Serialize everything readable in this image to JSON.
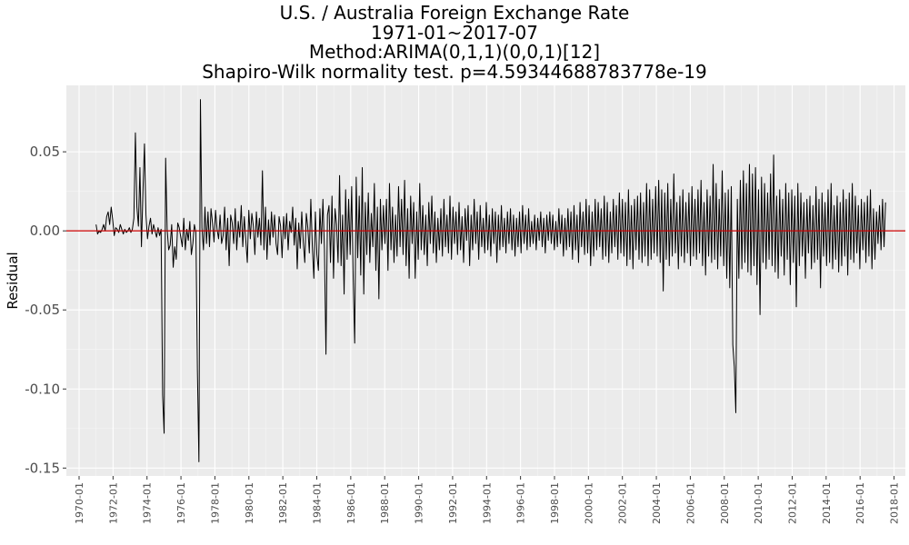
{
  "chart_data": {
    "type": "line",
    "title_lines": [
      "U.S. / Australia Foreign Exchange Rate",
      "1971-01~2017-07",
      "Method:ARIMA(0,1,1)(0,0,1)[12]",
      "Shapiro-Wilk normality test. p=4.59344688783778e-19"
    ],
    "xlabel": "",
    "ylabel": "Residual",
    "x_range": [
      "1971-01",
      "2017-07"
    ],
    "xlim": [
      "1969-04",
      "2018-09"
    ],
    "ylim": [
      -0.155,
      0.092
    ],
    "x_ticks": [
      "1970-01",
      "1972-01",
      "1974-01",
      "1976-01",
      "1978-01",
      "1980-01",
      "1982-01",
      "1984-01",
      "1986-01",
      "1988-01",
      "1990-01",
      "1992-01",
      "1994-01",
      "1996-01",
      "1998-01",
      "2000-01",
      "2002-01",
      "2004-01",
      "2006-01",
      "2008-01",
      "2010-01",
      "2012-01",
      "2014-01",
      "2016-01",
      "2018-01"
    ],
    "y_ticks": [
      {
        "value": 0.05,
        "label": "0.05"
      },
      {
        "value": 0.0,
        "label": "0.00"
      },
      {
        "value": -0.05,
        "label": "-0.05"
      },
      {
        "value": -0.1,
        "label": "-0.10"
      },
      {
        "value": -0.15,
        "label": "-0.15"
      }
    ],
    "reference_line": {
      "value": 0,
      "color": "#cc0000"
    },
    "series_color": "#000000",
    "panel_background": "#ebebeb",
    "grid": true,
    "series": [
      {
        "values": [
          0.004,
          -0.002,
          0.0,
          -0.001,
          0.001,
          0.004,
          0.0,
          0.009,
          0.012,
          0.004,
          0.015,
          0.007,
          -0.003,
          0.002,
          0.001,
          -0.001,
          0.004,
          0.001,
          -0.002,
          0.001,
          -0.001,
          0.0,
          0.002,
          -0.001,
          0.001,
          0.008,
          0.062,
          0.015,
          0.003,
          0.04,
          -0.01,
          0.025,
          0.055,
          0.01,
          -0.005,
          0.003,
          0.008,
          -0.002,
          0.004,
          0.0,
          -0.004,
          0.002,
          -0.003,
          0.001,
          -0.104,
          -0.128,
          0.046,
          0.001,
          -0.012,
          -0.009,
          0.004,
          -0.023,
          -0.01,
          -0.018,
          0.005,
          0.002,
          -0.004,
          -0.01,
          0.008,
          -0.012,
          0.001,
          -0.006,
          0.006,
          -0.015,
          -0.008,
          0.004,
          -0.001,
          -0.088,
          -0.146,
          0.083,
          0.002,
          -0.012,
          0.015,
          -0.008,
          0.012,
          -0.01,
          0.014,
          0.005,
          -0.007,
          0.013,
          0.001,
          -0.005,
          0.01,
          -0.008,
          -0.003,
          0.015,
          -0.012,
          0.008,
          -0.022,
          0.01,
          0.005,
          -0.008,
          0.014,
          -0.012,
          0.006,
          -0.004,
          0.016,
          -0.01,
          0.009,
          -0.006,
          -0.02,
          0.013,
          -0.005,
          0.011,
          0.003,
          -0.015,
          0.012,
          -0.004,
          0.008,
          -0.009,
          0.038,
          -0.012,
          0.015,
          -0.018,
          0.007,
          -0.009,
          0.012,
          -0.004,
          0.01,
          -0.008,
          -0.015,
          0.009,
          0.003,
          -0.017,
          0.009,
          -0.005,
          0.011,
          -0.012,
          0.006,
          -0.001,
          0.015,
          -0.009,
          0.008,
          -0.024,
          0.005,
          -0.011,
          0.012,
          -0.007,
          -0.02,
          0.011,
          0.002,
          -0.014,
          0.02,
          -0.01,
          -0.03,
          0.012,
          -0.015,
          -0.025,
          0.014,
          -0.008,
          0.02,
          -0.012,
          -0.078,
          0.01,
          0.016,
          -0.02,
          0.022,
          -0.03,
          0.014,
          0.004,
          -0.02,
          0.035,
          -0.022,
          0.01,
          -0.04,
          0.026,
          -0.018,
          0.02,
          -0.015,
          0.028,
          -0.03,
          -0.071,
          0.034,
          -0.017,
          0.022,
          -0.028,
          0.04,
          -0.04,
          0.018,
          -0.015,
          0.024,
          -0.02,
          0.011,
          -0.01,
          0.03,
          -0.025,
          0.015,
          -0.043,
          0.02,
          -0.012,
          0.016,
          -0.008,
          0.02,
          -0.025,
          0.03,
          -0.012,
          0.015,
          -0.02,
          0.01,
          -0.016,
          0.028,
          -0.01,
          0.02,
          -0.015,
          0.032,
          -0.022,
          0.014,
          -0.03,
          0.022,
          -0.008,
          0.018,
          -0.03,
          0.012,
          -0.018,
          0.03,
          -0.012,
          0.016,
          -0.015,
          0.01,
          -0.022,
          0.018,
          -0.008,
          0.022,
          -0.014,
          0.012,
          -0.02,
          0.008,
          -0.012,
          0.014,
          -0.016,
          0.02,
          -0.01,
          0.01,
          -0.014,
          0.022,
          -0.018,
          0.015,
          -0.008,
          0.012,
          -0.015,
          0.018,
          -0.012,
          0.009,
          -0.02,
          0.014,
          -0.006,
          0.016,
          -0.022,
          0.01,
          -0.012,
          0.02,
          -0.008,
          0.012,
          -0.018,
          0.016,
          -0.01,
          0.008,
          -0.014,
          0.018,
          -0.012,
          0.01,
          -0.016,
          0.014,
          -0.008,
          0.012,
          -0.02,
          0.01,
          -0.012,
          0.016,
          -0.01,
          0.008,
          -0.014,
          0.012,
          -0.008,
          0.014,
          -0.012,
          0.01,
          -0.016,
          0.008,
          -0.01,
          0.012,
          -0.014,
          0.016,
          -0.008,
          0.01,
          -0.012,
          0.014,
          -0.01,
          0.006,
          -0.008,
          0.01,
          -0.012,
          0.008,
          -0.006,
          0.012,
          -0.01,
          0.008,
          -0.014,
          0.01,
          -0.006,
          0.012,
          -0.008,
          0.01,
          -0.012,
          0.006,
          -0.01,
          0.014,
          -0.008,
          0.01,
          -0.016,
          0.008,
          -0.012,
          0.014,
          -0.01,
          0.012,
          -0.018,
          0.016,
          -0.012,
          0.01,
          -0.02,
          0.018,
          -0.01,
          0.012,
          -0.015,
          0.02,
          -0.014,
          0.016,
          -0.022,
          0.012,
          -0.016,
          0.02,
          -0.012,
          0.018,
          -0.01,
          0.014,
          -0.018,
          0.022,
          -0.016,
          0.018,
          -0.02,
          0.012,
          -0.014,
          0.02,
          -0.01,
          0.016,
          -0.018,
          0.024,
          -0.014,
          0.02,
          -0.016,
          0.018,
          -0.022,
          0.026,
          -0.018,
          0.016,
          -0.024,
          0.02,
          -0.012,
          0.022,
          -0.018,
          0.024,
          -0.02,
          0.018,
          -0.016,
          0.03,
          -0.022,
          0.026,
          -0.018,
          0.02,
          -0.014,
          0.028,
          -0.016,
          0.032,
          -0.02,
          0.026,
          -0.038,
          0.024,
          -0.018,
          0.03,
          -0.022,
          0.02,
          -0.016,
          0.036,
          -0.014,
          0.018,
          -0.024,
          0.022,
          -0.016,
          0.026,
          -0.02,
          0.018,
          -0.014,
          0.024,
          -0.022,
          0.028,
          -0.016,
          0.02,
          -0.018,
          0.026,
          -0.014,
          0.032,
          -0.022,
          0.018,
          -0.028,
          0.026,
          -0.016,
          0.022,
          -0.02,
          0.042,
          -0.018,
          0.03,
          -0.024,
          0.02,
          -0.016,
          0.038,
          -0.022,
          0.024,
          -0.03,
          0.026,
          -0.036,
          0.028,
          -0.072,
          -0.086,
          -0.115,
          0.02,
          -0.03,
          0.032,
          -0.024,
          0.038,
          -0.02,
          0.03,
          -0.026,
          0.042,
          -0.028,
          0.036,
          -0.022,
          0.04,
          -0.034,
          0.026,
          -0.053,
          0.034,
          -0.02,
          0.03,
          -0.024,
          0.024,
          -0.018,
          0.036,
          -0.022,
          0.048,
          -0.026,
          0.022,
          -0.03,
          0.026,
          -0.016,
          0.02,
          -0.028,
          0.03,
          -0.018,
          0.024,
          -0.034,
          0.026,
          -0.02,
          0.022,
          -0.048,
          0.03,
          -0.022,
          0.024,
          -0.016,
          0.018,
          -0.03,
          0.02,
          -0.014,
          0.022,
          -0.024,
          0.016,
          -0.02,
          0.028,
          -0.018,
          0.02,
          -0.036,
          0.024,
          -0.016,
          0.018,
          -0.022,
          0.026,
          -0.02,
          0.03,
          -0.024,
          0.016,
          -0.018,
          0.022,
          -0.026,
          0.018,
          -0.022,
          0.026,
          -0.016,
          0.02,
          -0.028,
          0.024,
          -0.018,
          0.03,
          -0.02,
          0.022,
          -0.014,
          0.016,
          -0.024,
          0.02,
          -0.012,
          0.018,
          -0.02,
          0.022,
          -0.016,
          0.026,
          -0.024,
          0.014,
          -0.018,
          0.012,
          -0.008,
          0.016,
          -0.012,
          0.02,
          -0.01,
          0.018
        ]
      }
    ]
  }
}
